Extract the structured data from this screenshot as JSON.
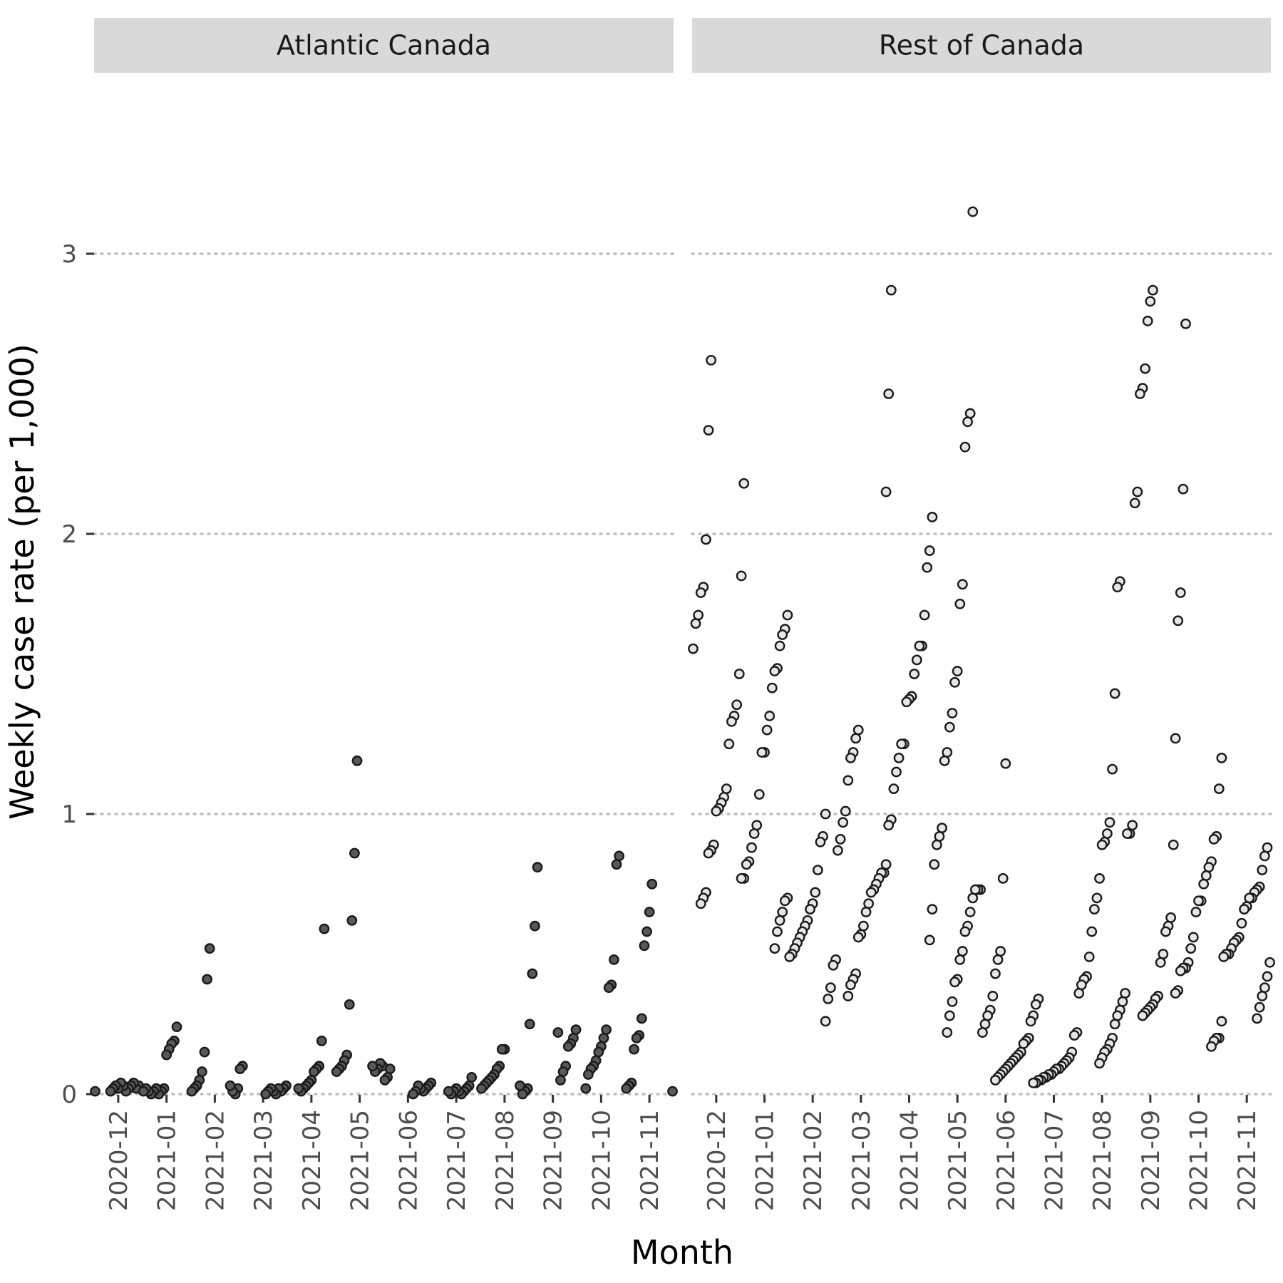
{
  "chart_data": {
    "type": "scatter",
    "xlabel": "Month",
    "ylabel": "Weekly case rate (per 1,000)",
    "ylim": [
      0,
      3.2
    ],
    "y_ticks": [
      0,
      1,
      2,
      3
    ],
    "y_tick_labels": [
      "0",
      "1",
      "2",
      "3"
    ],
    "categories": [
      "2020-12",
      "2021-01",
      "2021-02",
      "2021-03",
      "2021-04",
      "2021-05",
      "2021-06",
      "2021-07",
      "2021-08",
      "2021-09",
      "2021-10",
      "2021-11"
    ],
    "grid": "horizontal dotted major lines",
    "panels": [
      {
        "name": "Atlantic Canada",
        "point_fill": "#595959",
        "values": [
          [
            0.01,
            0.02,
            0.03,
            0.02,
            0.04,
            0.03,
            0.02,
            0.01,
            0.03,
            0.04,
            0.02,
            0.03,
            0.02,
            0.01
          ],
          [
            0.24,
            0.19,
            0.18,
            0.16,
            0.14,
            0.02,
            0.01,
            0.0,
            0.02,
            0.01,
            0.0,
            0.01,
            0.02,
            0.01
          ],
          [
            0.52,
            0.41,
            0.15,
            0.08,
            0.05,
            0.03,
            0.02,
            0.01,
            0.02,
            0.0,
            0.01,
            0.03
          ],
          [
            0.1,
            0.09,
            0.03,
            0.02,
            0.01,
            0.02,
            0.0,
            0.01,
            0.02,
            0.01,
            0.0
          ],
          [
            0.59,
            0.19,
            0.1,
            0.09,
            0.08,
            0.05,
            0.04,
            0.03,
            0.02,
            0.01,
            0.02
          ],
          [
            1.19,
            0.86,
            0.62,
            0.32,
            0.14,
            0.12,
            0.1,
            0.09,
            0.08,
            0.1,
            0.11,
            0.09,
            0.08,
            0.1
          ],
          [
            0.09,
            0.06,
            0.05,
            0.04,
            0.03,
            0.02,
            0.01,
            0.02,
            0.03,
            0.01,
            0.0
          ],
          [
            0.06,
            0.03,
            0.02,
            0.01,
            0.0,
            0.01,
            0.02,
            0.01,
            0.0,
            0.01
          ],
          [
            0.16,
            0.16,
            0.1,
            0.09,
            0.07,
            0.06,
            0.05,
            0.04,
            0.03,
            0.02,
            0.02,
            0.01,
            0.0,
            0.03
          ],
          [
            0.81,
            0.6,
            0.43,
            0.25,
            0.23,
            0.2,
            0.18,
            0.17,
            0.1,
            0.08,
            0.05,
            0.22
          ],
          [
            0.85,
            0.82,
            0.48,
            0.39,
            0.38,
            0.23,
            0.2,
            0.17,
            0.15,
            0.12,
            0.1,
            0.09,
            0.07,
            0.02
          ],
          [
            0.75,
            0.65,
            0.58,
            0.53,
            0.27,
            0.21,
            0.2,
            0.16,
            0.04,
            0.03,
            0.02,
            0.01
          ]
        ]
      },
      {
        "name": "Rest of Canada",
        "point_fill": "#e6e6e6",
        "values": [
          [
            2.62,
            2.37,
            1.98,
            1.81,
            1.79,
            1.71,
            1.68,
            1.59,
            1.5,
            1.39,
            1.35,
            1.33,
            1.25,
            1.09,
            1.06,
            1.04,
            1.02,
            1.01,
            0.89,
            0.87,
            0.86,
            0.72,
            0.7,
            0.68
          ],
          [
            2.18,
            1.85,
            1.71,
            1.66,
            1.64,
            1.6,
            1.52,
            1.51,
            1.45,
            1.35,
            1.3,
            1.22,
            1.22,
            1.07,
            0.96,
            0.93,
            0.88,
            0.83,
            0.82,
            0.77,
            0.77,
            0.7,
            0.69,
            0.65,
            0.62,
            0.58,
            0.52
          ],
          [
            1.0,
            0.92,
            0.9,
            0.8,
            0.72,
            0.68,
            0.66,
            0.62,
            0.6,
            0.58,
            0.56,
            0.54,
            0.52,
            0.5,
            0.49,
            0.48,
            0.46,
            0.38,
            0.34,
            0.26
          ],
          [
            1.3,
            1.27,
            1.22,
            1.2,
            1.12,
            1.01,
            0.97,
            0.91,
            0.87,
            0.79,
            0.79,
            0.77,
            0.75,
            0.73,
            0.72,
            0.68,
            0.65,
            0.6,
            0.57,
            0.56,
            0.43,
            0.41,
            0.39,
            0.35
          ],
          [
            2.87,
            2.5,
            2.15,
            2.06,
            1.94,
            1.88,
            1.71,
            1.6,
            1.6,
            1.55,
            1.5,
            1.42,
            1.41,
            1.4,
            1.25,
            1.25,
            1.2,
            1.15,
            1.09,
            0.98,
            0.96,
            0.82,
            0.66,
            0.55
          ],
          [
            3.15,
            2.43,
            2.4,
            2.31,
            1.82,
            1.75,
            1.51,
            1.47,
            1.36,
            1.31,
            1.22,
            1.19,
            0.95,
            0.92,
            0.89,
            0.82,
            0.73,
            0.73,
            0.73,
            0.7,
            0.65,
            0.6,
            0.58,
            0.51,
            0.48,
            0.41,
            0.4,
            0.33,
            0.28,
            0.22
          ],
          [
            1.18,
            0.77,
            0.51,
            0.48,
            0.43,
            0.35,
            0.3,
            0.28,
            0.25,
            0.22,
            0.2,
            0.19,
            0.18,
            0.15,
            0.14,
            0.13,
            0.12,
            0.11,
            0.1,
            0.09,
            0.08,
            0.07,
            0.06,
            0.05
          ],
          [
            0.34,
            0.32,
            0.28,
            0.26,
            0.22,
            0.21,
            0.15,
            0.13,
            0.12,
            0.11,
            0.1,
            0.09,
            0.09,
            0.08,
            0.07,
            0.07,
            0.06,
            0.06,
            0.05,
            0.05,
            0.04,
            0.04
          ],
          [
            1.83,
            1.81,
            1.43,
            1.16,
            0.97,
            0.93,
            0.9,
            0.89,
            0.77,
            0.7,
            0.66,
            0.58,
            0.49,
            0.42,
            0.41,
            0.39,
            0.36,
            0.36,
            0.33,
            0.3,
            0.28,
            0.25,
            0.2,
            0.18,
            0.16,
            0.15,
            0.13,
            0.11
          ],
          [
            2.87,
            2.83,
            2.76,
            2.59,
            2.52,
            2.5,
            2.15,
            2.11,
            0.96,
            0.93,
            0.93,
            0.89,
            0.63,
            0.6,
            0.58,
            0.5,
            0.47,
            0.35,
            0.34,
            0.32,
            0.31,
            0.3,
            0.29,
            0.28
          ],
          [
            2.75,
            2.16,
            1.79,
            1.69,
            1.27,
            1.2,
            1.09,
            0.92,
            0.91,
            0.83,
            0.81,
            0.78,
            0.75,
            0.69,
            0.69,
            0.65,
            0.56,
            0.52,
            0.47,
            0.45,
            0.45,
            0.44,
            0.37,
            0.36,
            0.26,
            0.2,
            0.2,
            0.19,
            0.17
          ],
          [
            0.88,
            0.85,
            0.8,
            0.74,
            0.73,
            0.72,
            0.7,
            0.7,
            0.67,
            0.66,
            0.61,
            0.56,
            0.55,
            0.54,
            0.52,
            0.5,
            0.5,
            0.49,
            0.47,
            0.42,
            0.38,
            0.35,
            0.31,
            0.27
          ]
        ]
      }
    ]
  }
}
